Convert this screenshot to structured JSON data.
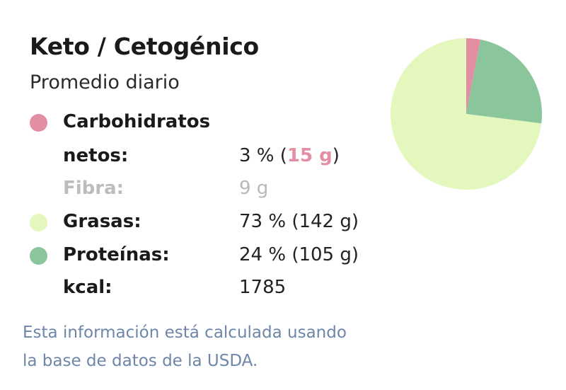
{
  "header": {
    "title": "Keto / Cetogénico",
    "subtitle": "Promedio diario"
  },
  "rows": {
    "carbs": {
      "label_line1": "Carbohidratos",
      "label_line2": "netos:",
      "value_prefix": "3 % (",
      "value_grams": "15 g",
      "value_suffix": ")"
    },
    "fiber": {
      "label": "Fibra:",
      "value": "9 g"
    },
    "fat": {
      "label": "Grasas:",
      "value": "73 % (142 g)"
    },
    "protein": {
      "label": "Proteínas:",
      "value": "24 % (105 g)"
    },
    "kcal": {
      "label": "kcal:",
      "value": "1785"
    }
  },
  "footnote": {
    "line1": "Esta información está calculada usando",
    "line2": "la base de datos de la USDA."
  },
  "colors": {
    "carbs": "#e48ea4",
    "fat": "#e4f7bd",
    "protein": "#8ac59c",
    "footnote": "#6e86a8"
  },
  "chart_data": {
    "type": "pie",
    "slices": [
      {
        "name": "Carbohidratos netos",
        "value": 3,
        "color": "#e48ea4"
      },
      {
        "name": "Proteínas",
        "value": 24,
        "color": "#8ac59c"
      },
      {
        "name": "Grasas",
        "value": 73,
        "color": "#e4f7bd"
      }
    ],
    "start": "top",
    "direction": "clockwise"
  }
}
